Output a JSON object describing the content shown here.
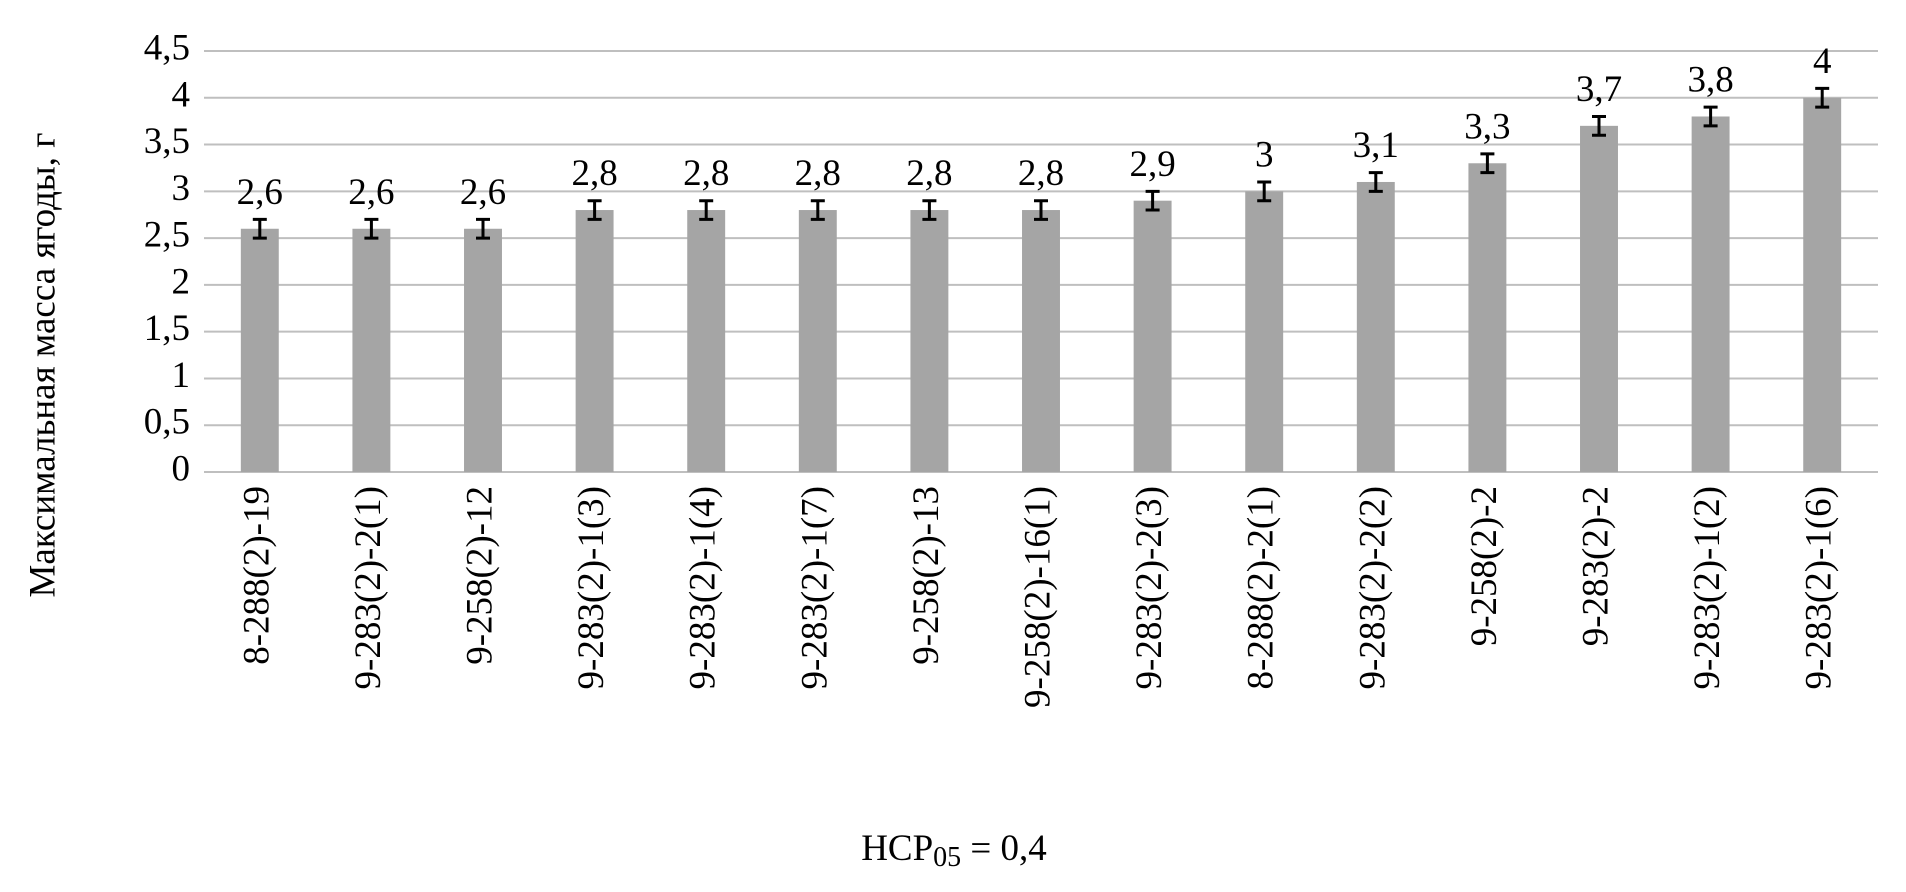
{
  "chart_data": {
    "type": "bar",
    "y_label": "Максимальная масса ягоды, г",
    "categories": [
      "8-288(2)-19",
      "9-283(2)-2(1)",
      "9-258(2)-12",
      "9-283(2)-1(3)",
      "9-283(2)-1(4)",
      "9-283(2)-1(7)",
      "9-258(2)-13",
      "9-258(2)-16(1)",
      "9-283(2)-2(3)",
      "8-288(2)-2(1)",
      "9-283(2)-2(2)",
      "9-258(2)-2",
      "9-283(2)-2",
      "9-283(2)-1(2)",
      "9-283(2)-1(6)"
    ],
    "values": [
      2.6,
      2.6,
      2.6,
      2.8,
      2.8,
      2.8,
      2.8,
      2.8,
      2.9,
      3,
      3.1,
      3.3,
      3.7,
      3.8,
      4
    ],
    "value_labels": [
      "2,6",
      "2,6",
      "2,6",
      "2,8",
      "2,8",
      "2,8",
      "2,8",
      "2,8",
      "2,9",
      "3",
      "3,1",
      "3,3",
      "3,7",
      "3,8",
      "4"
    ],
    "errors": [
      0.1,
      0.1,
      0.1,
      0.1,
      0.1,
      0.1,
      0.1,
      0.1,
      0.1,
      0.1,
      0.1,
      0.1,
      0.1,
      0.1,
      0.1
    ],
    "color": "#a5a5a5",
    "ylim": [
      0,
      4.5
    ],
    "yticks": [
      0,
      {
        "value": 0.5,
        "label": "0,5"
      },
      1,
      {
        "value": 1.5,
        "label": "1,5"
      },
      2,
      {
        "value": 2.5,
        "label": "2,5"
      },
      3,
      {
        "value": 3.5,
        "label": "3,5"
      },
      4,
      {
        "value": 4.5,
        "label": "4,5"
      }
    ],
    "grid": true,
    "note": {
      "prefix": "НСР",
      "subscript": "05",
      "suffix": " = 0,4"
    }
  }
}
